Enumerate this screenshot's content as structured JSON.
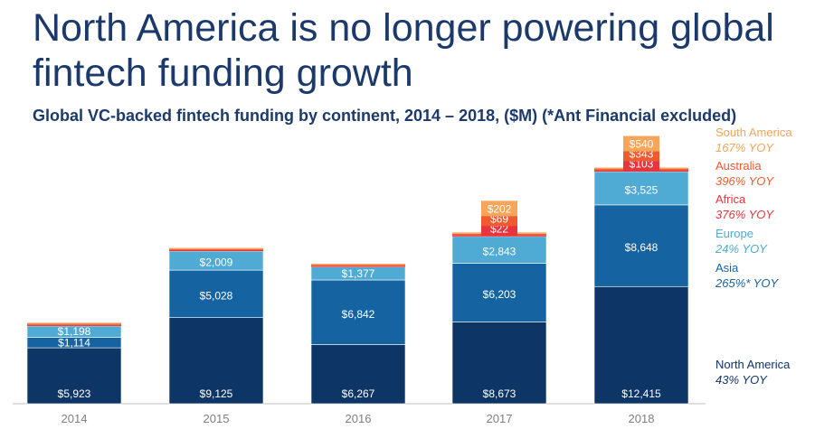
{
  "title": "North America is no longer powering global fintech funding growth",
  "subtitle": "Global VC-backed fintech funding by continent, 2014 – 2018, ($M) (*Ant Financial excluded)",
  "chart_data": {
    "type": "bar",
    "stacked": true,
    "title": "North America is no longer powering global fintech funding growth",
    "subtitle": "Global VC-backed fintech funding by continent, 2014 – 2018, ($M) (*Ant Financial excluded)",
    "categories": [
      "2014",
      "2015",
      "2016",
      "2017",
      "2018"
    ],
    "xlabel": "",
    "ylabel": "",
    "ylim": [
      0,
      26000
    ],
    "grid": false,
    "legend_position": "right",
    "series": [
      {
        "name": "North America",
        "yoy": "43% YOY",
        "color": "#0d3566",
        "label_color": "#ffffff",
        "values": [
          5923,
          9125,
          6267,
          8673,
          12415
        ],
        "labels": [
          "$5,923",
          "$9,125",
          "$6,267",
          "$8,673",
          "$12,415"
        ]
      },
      {
        "name": "Asia",
        "yoy": "265%* YOY",
        "color": "#1563a0",
        "label_color": "#ffffff",
        "values": [
          1114,
          5028,
          6842,
          6203,
          8648
        ],
        "labels": [
          "$1,114",
          "$5,028",
          "$6,842",
          "$6,203",
          "$8,648"
        ]
      },
      {
        "name": "Europe",
        "yoy": "24% YOY",
        "color": "#4fabd3",
        "label_color": "#ffffff",
        "values": [
          1198,
          2009,
          1377,
          2843,
          3525
        ],
        "labels": [
          "$1,198",
          "$2,009",
          "$1,377",
          "$2,843",
          "$3,525"
        ]
      },
      {
        "name": "Africa",
        "yoy": "376% YOY",
        "color": "#e8343c",
        "label_color": "#ffffff",
        "values": [
          null,
          null,
          null,
          22,
          103
        ],
        "labels": [
          null,
          null,
          null,
          "$22",
          "$103"
        ]
      },
      {
        "name": "Australia",
        "yoy": "396% YOY",
        "color": "#f05a30",
        "label_color": "#ffffff",
        "values": [
          null,
          null,
          null,
          69,
          343
        ],
        "labels": [
          null,
          null,
          null,
          "$69",
          "$343"
        ]
      },
      {
        "name": "South America",
        "yoy": "167% YOY",
        "color": "#f6a55a",
        "label_color": "#ffffff",
        "values": [
          null,
          null,
          null,
          202,
          540
        ],
        "labels": [
          null,
          null,
          null,
          "$202",
          "$540"
        ]
      }
    ]
  }
}
